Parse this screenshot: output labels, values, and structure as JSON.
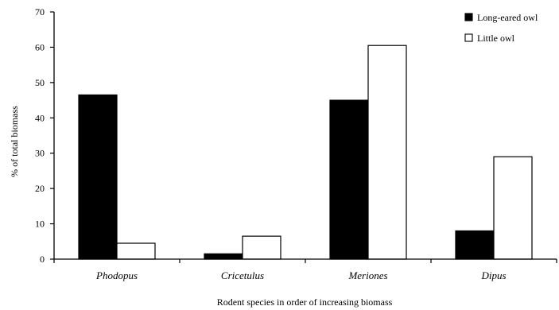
{
  "chart_data": {
    "type": "bar",
    "title": "",
    "xlabel": "Rodent species in order of increasing biomass",
    "ylabel": "% of total biomass",
    "ylim": [
      0,
      70
    ],
    "yticks": [
      0,
      10,
      20,
      30,
      40,
      50,
      60,
      70
    ],
    "grid": false,
    "legend_position": "top-right",
    "categories": [
      "Phodopus",
      "Cricetulus",
      "Meriones",
      "Dipus"
    ],
    "series": [
      {
        "name": "Long-eared owl",
        "values": [
          46.5,
          1.5,
          45,
          8
        ],
        "fill": "#000000"
      },
      {
        "name": "Little owl",
        "values": [
          4.5,
          6.5,
          60.5,
          29
        ],
        "fill": "#ffffff"
      }
    ]
  }
}
